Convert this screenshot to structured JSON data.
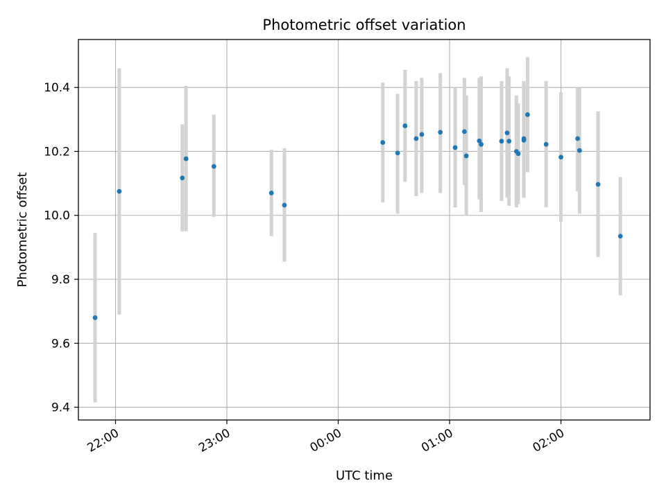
{
  "chart_data": {
    "type": "scatter",
    "title": "Photometric offset variation",
    "xlabel": "UTC time",
    "ylabel": "Photometric offset",
    "x_is_time": true,
    "xlim": [
      "21:40",
      "02:48"
    ],
    "ylim": [
      9.36,
      10.55
    ],
    "y_ticks": [
      9.4,
      9.6,
      9.8,
      10.0,
      10.2,
      10.4
    ],
    "y_tick_labels": [
      "9.4",
      "9.6",
      "9.8",
      "10.0",
      "10.2",
      "10.4"
    ],
    "x_ticks": [
      "22:00",
      "23:00",
      "00:00",
      "01:00",
      "02:00"
    ],
    "x_tick_labels": [
      "22:00",
      "23:00",
      "00:00",
      "01:00",
      "02:00"
    ],
    "grid": true,
    "colors": {
      "point": "#1f77b4",
      "errorbar": "#d3d3d3",
      "grid": "#b0b0b0",
      "axis": "#000000"
    },
    "series": [
      {
        "points": [
          {
            "x": "21:49",
            "y": 9.68,
            "ylow": 9.415,
            "yhigh": 9.945
          },
          {
            "x": "22:02",
            "y": 10.075,
            "ylow": 9.69,
            "yhigh": 10.46
          },
          {
            "x": "22:36",
            "y": 10.117,
            "ylow": 9.95,
            "yhigh": 10.285
          },
          {
            "x": "22:38",
            "y": 10.177,
            "ylow": 9.95,
            "yhigh": 10.405
          },
          {
            "x": "22:53",
            "y": 10.153,
            "ylow": 9.995,
            "yhigh": 10.315
          },
          {
            "x": "23:24",
            "y": 10.07,
            "ylow": 9.935,
            "yhigh": 10.205
          },
          {
            "x": "23:31",
            "y": 10.032,
            "ylow": 9.855,
            "yhigh": 10.21
          },
          {
            "x": "00:24",
            "y": 10.228,
            "ylow": 10.04,
            "yhigh": 10.415
          },
          {
            "x": "00:32",
            "y": 10.195,
            "ylow": 10.005,
            "yhigh": 10.38
          },
          {
            "x": "00:36",
            "y": 10.28,
            "ylow": 10.105,
            "yhigh": 10.455
          },
          {
            "x": "00:42",
            "y": 10.24,
            "ylow": 10.06,
            "yhigh": 10.42
          },
          {
            "x": "00:45",
            "y": 10.253,
            "ylow": 10.07,
            "yhigh": 10.43
          },
          {
            "x": "00:55",
            "y": 10.26,
            "ylow": 10.07,
            "yhigh": 10.445
          },
          {
            "x": "01:03",
            "y": 10.212,
            "ylow": 10.025,
            "yhigh": 10.4
          },
          {
            "x": "01:08",
            "y": 10.262,
            "ylow": 10.095,
            "yhigh": 10.43
          },
          {
            "x": "01:09",
            "y": 10.186,
            "ylow": 10.0,
            "yhigh": 10.375
          },
          {
            "x": "01:16",
            "y": 10.233,
            "ylow": 10.05,
            "yhigh": 10.43
          },
          {
            "x": "01:17",
            "y": 10.222,
            "ylow": 10.01,
            "yhigh": 10.435
          },
          {
            "x": "01:28",
            "y": 10.232,
            "ylow": 10.045,
            "yhigh": 10.42
          },
          {
            "x": "01:31",
            "y": 10.258,
            "ylow": 10.055,
            "yhigh": 10.46
          },
          {
            "x": "01:32",
            "y": 10.232,
            "ylow": 10.03,
            "yhigh": 10.435
          },
          {
            "x": "01:36",
            "y": 10.2,
            "ylow": 10.025,
            "yhigh": 10.375
          },
          {
            "x": "01:37",
            "y": 10.193,
            "ylow": 10.035,
            "yhigh": 10.35
          },
          {
            "x": "01:40",
            "y": 10.24,
            "ylow": 10.055,
            "yhigh": 10.42
          },
          {
            "x": "01:40",
            "y": 10.235,
            "ylow": 10.06,
            "yhigh": 10.41
          },
          {
            "x": "01:42",
            "y": 10.315,
            "ylow": 10.135,
            "yhigh": 10.495
          },
          {
            "x": "01:52",
            "y": 10.222,
            "ylow": 10.025,
            "yhigh": 10.42
          },
          {
            "x": "02:00",
            "y": 10.182,
            "ylow": 9.98,
            "yhigh": 10.385
          },
          {
            "x": "02:09",
            "y": 10.24,
            "ylow": 10.075,
            "yhigh": 10.4
          },
          {
            "x": "02:10",
            "y": 10.203,
            "ylow": 10.005,
            "yhigh": 10.4
          },
          {
            "x": "02:20",
            "y": 10.097,
            "ylow": 9.87,
            "yhigh": 10.325
          },
          {
            "x": "02:32",
            "y": 9.935,
            "ylow": 9.75,
            "yhigh": 10.12
          }
        ]
      }
    ]
  }
}
